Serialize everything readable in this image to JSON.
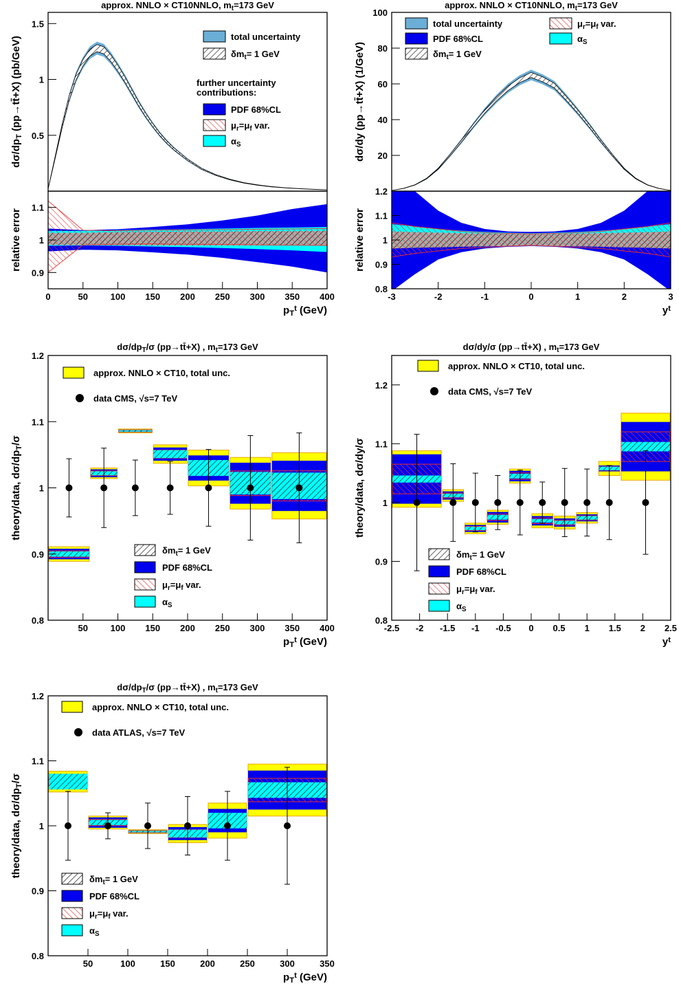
{
  "chart_data": [
    {
      "id": "ptMain",
      "type": "area",
      "title": "approx. NNLO × CT10NNLO, m_t=173 GeV",
      "xlabel": "",
      "ylabel": "dσ/dp_T (pp→tt̄+X) (pb/GeV)",
      "xlim": [
        0,
        400
      ],
      "ylim": [
        0,
        1.6
      ],
      "yticks": [
        0.5,
        1,
        1.5
      ],
      "x": [
        0,
        10,
        20,
        30,
        40,
        50,
        60,
        70,
        80,
        90,
        100,
        110,
        120,
        130,
        140,
        150,
        160,
        170,
        180,
        190,
        200,
        220,
        240,
        260,
        280,
        300,
        320,
        340,
        360,
        380,
        400
      ],
      "values": [
        0.02,
        0.3,
        0.58,
        0.83,
        1.02,
        1.15,
        1.24,
        1.28,
        1.26,
        1.19,
        1.1,
        1.0,
        0.89,
        0.78,
        0.68,
        0.59,
        0.51,
        0.44,
        0.38,
        0.33,
        0.28,
        0.2,
        0.145,
        0.105,
        0.075,
        0.055,
        0.04,
        0.03,
        0.022,
        0.016,
        0.012
      ],
      "bands": [
        {
          "name": "total uncertainty",
          "rel_lo": 0.955,
          "rel_hi": 1.045,
          "color": "#6baed6"
        },
        {
          "name": "δm_t= 1 GeV",
          "rel_lo": 0.975,
          "rel_hi": 1.025,
          "color": "#9a9a9a"
        }
      ],
      "legend": {
        "items": [
          "total uncertainty",
          "δm_t= 1 GeV"
        ],
        "header_1": "further uncertainty",
        "header_2": "contributions:",
        "extra": [
          "PDF 68%CL",
          "μ_r=μ_f var.",
          "α_S"
        ]
      }
    },
    {
      "id": "ptRel",
      "type": "area",
      "xlabel": "p_T^t (GeV)",
      "ylabel": "relative error",
      "xlim": [
        0,
        400
      ],
      "ylim": [
        0.85,
        1.15
      ],
      "xticks": [
        0,
        50,
        100,
        150,
        200,
        250,
        300,
        350,
        400
      ],
      "yticks": [
        0.9,
        1,
        1.1
      ],
      "x": [
        0,
        50,
        100,
        150,
        200,
        250,
        300,
        350,
        400
      ],
      "pdf_lo": [
        0.965,
        0.97,
        0.968,
        0.962,
        0.955,
        0.945,
        0.932,
        0.918,
        0.9
      ],
      "pdf_hi": [
        1.035,
        1.03,
        1.033,
        1.04,
        1.048,
        1.06,
        1.075,
        1.095,
        1.11
      ],
      "alphas_lo": [
        0.982,
        0.983,
        0.982,
        0.98,
        0.978,
        0.975,
        0.972,
        0.968,
        0.963
      ],
      "alphas_hi": [
        1.028,
        1.028,
        1.03,
        1.032,
        1.033,
        1.035,
        1.037,
        1.038,
        1.04
      ],
      "mass_lo": [
        0.985,
        0.984,
        0.984,
        0.983,
        0.983,
        0.983,
        0.983,
        0.983,
        0.984
      ],
      "mass_hi": [
        1.022,
        1.022,
        1.024,
        1.025,
        1.026,
        1.026,
        1.027,
        1.027,
        1.028
      ],
      "scale_lo": [
        0.9,
        0.985,
        0.987,
        0.988,
        0.987,
        0.986,
        0.985,
        0.984,
        0.983
      ],
      "scale_hi": [
        1.12,
        1.03,
        1.028,
        1.03,
        1.031,
        1.032,
        1.033,
        1.034,
        1.035
      ]
    },
    {
      "id": "yMain",
      "type": "area",
      "title": "approx. NNLO × CT10NNLO, m_t=173 GeV",
      "xlabel": "",
      "ylabel": "dσ/dy (pp→tt̄+X) (1/GeV)",
      "xlim": [
        -3,
        3
      ],
      "ylim": [
        0,
        100
      ],
      "yticks": [
        20,
        40,
        60,
        80,
        100
      ],
      "x": [
        -3,
        -2.75,
        -2.5,
        -2.25,
        -2,
        -1.75,
        -1.5,
        -1.25,
        -1,
        -0.75,
        -0.5,
        -0.25,
        0,
        0.25,
        0.5,
        0.75,
        1,
        1.25,
        1.5,
        1.75,
        2,
        2.25,
        2.5,
        2.75,
        3
      ],
      "values": [
        0.4,
        1.5,
        3.5,
        7,
        12.5,
        20,
        28,
        36.5,
        44.5,
        51.5,
        57.5,
        62,
        65,
        62.5,
        59,
        52,
        44.5,
        36.5,
        28,
        20,
        12.5,
        7,
        3.5,
        1.5,
        0.4
      ],
      "bands": [
        {
          "name": "total uncertainty",
          "rel_lo": 0.955,
          "rel_hi": 1.045,
          "color": "#6baed6"
        },
        {
          "name": "δm_t= 1 GeV",
          "rel_lo": 0.978,
          "rel_hi": 1.022,
          "color": "#9a9a9a"
        }
      ],
      "legend": {
        "items": [
          "total uncertainty",
          "PDF 68%CL",
          "δm_t= 1 GeV",
          "μ_r=μ_f var.",
          "α_S"
        ]
      }
    },
    {
      "id": "yRel",
      "type": "area",
      "xlabel": "y^t",
      "ylabel": "relative error",
      "xlim": [
        -3,
        3
      ],
      "ylim": [
        0.8,
        1.2
      ],
      "xticks": [
        -3,
        -2,
        -1,
        0,
        1,
        2,
        3
      ],
      "yticks": [
        0.8,
        0.9,
        1,
        1.1,
        1.2
      ],
      "x": [
        -3,
        -2.5,
        -2,
        -1.5,
        -1,
        -0.5,
        0,
        0.5,
        1,
        1.5,
        2,
        2.5,
        3
      ],
      "pdf_lo": [
        0.79,
        0.86,
        0.92,
        0.95,
        0.965,
        0.972,
        0.975,
        0.972,
        0.965,
        0.95,
        0.92,
        0.86,
        0.79
      ],
      "pdf_hi": [
        1.21,
        1.2,
        1.12,
        1.07,
        1.045,
        1.035,
        1.033,
        1.035,
        1.045,
        1.07,
        1.12,
        1.2,
        1.21
      ],
      "alphas_lo": [
        0.98,
        0.98,
        0.98,
        0.98,
        0.98,
        0.98,
        0.98,
        0.98,
        0.98,
        0.98,
        0.98,
        0.98,
        0.98
      ],
      "alphas_hi": [
        1.065,
        1.055,
        1.045,
        1.038,
        1.033,
        1.03,
        1.028,
        1.03,
        1.033,
        1.038,
        1.045,
        1.055,
        1.065
      ],
      "mass_lo": [
        0.965,
        0.968,
        0.97,
        0.972,
        0.974,
        0.975,
        0.976,
        0.975,
        0.974,
        0.972,
        0.97,
        0.968,
        0.965
      ],
      "mass_hi": [
        1.035,
        1.032,
        1.03,
        1.028,
        1.026,
        1.025,
        1.024,
        1.025,
        1.026,
        1.028,
        1.03,
        1.032,
        1.035
      ],
      "scale_lo": [
        0.93,
        0.945,
        0.955,
        0.965,
        0.97,
        0.975,
        0.978,
        0.975,
        0.97,
        0.965,
        0.955,
        0.945,
        0.93
      ],
      "scale_hi": [
        1.07,
        1.055,
        1.045,
        1.035,
        1.03,
        1.027,
        1.025,
        1.027,
        1.03,
        1.035,
        1.045,
        1.055,
        1.07
      ]
    },
    {
      "id": "cmsPt",
      "type": "bar",
      "title": "dσ/dp_T/σ (pp→tt̄+X) , m_t=173 GeV",
      "xlabel": "p_T^t (GeV)",
      "ylabel": "theory/data, dσ/dp_T/σ",
      "xlim": [
        0,
        400
      ],
      "ylim": [
        0.8,
        1.2
      ],
      "xticks": [
        50,
        100,
        150,
        200,
        250,
        300,
        350,
        400
      ],
      "yticks": [
        0.8,
        0.9,
        1,
        1.1,
        1.2
      ],
      "bins": [
        {
          "lo": 0,
          "hi": 60,
          "c": 0.9,
          "tot": 0.011,
          "pdf": 0.008,
          "dm": 0.004
        },
        {
          "lo": 60,
          "hi": 100,
          "c": 1.022,
          "tot": 0.008,
          "pdf": 0.006,
          "dm": 0.003
        },
        {
          "lo": 100,
          "hi": 150,
          "c": 1.086,
          "tot": 0.003,
          "pdf": 0.002,
          "dm": 0.001
        },
        {
          "lo": 150,
          "hi": 200,
          "c": 1.051,
          "tot": 0.014,
          "pdf": 0.01,
          "dm": 0.006
        },
        {
          "lo": 200,
          "hi": 260,
          "c": 1.03,
          "tot": 0.027,
          "pdf": 0.019,
          "dm": 0.012
        },
        {
          "lo": 260,
          "hi": 320,
          "c": 1.007,
          "tot": 0.039,
          "pdf": 0.031,
          "dm": 0.017
        },
        {
          "lo": 320,
          "hi": 400,
          "c": 1.003,
          "tot": 0.05,
          "pdf": 0.038,
          "dm": 0.02
        }
      ],
      "data_x": [
        30,
        80,
        125,
        175,
        230,
        290,
        360
      ],
      "data_y": [
        1,
        1,
        1,
        1,
        1,
        1,
        1
      ],
      "data_err": [
        0.044,
        0.06,
        0.042,
        0.04,
        0.058,
        0.079,
        0.083
      ],
      "legend": {
        "top": [
          "approx. NNLO × CT10, total unc.",
          "data CMS, √s=7 TeV"
        ],
        "bottom": [
          "δm_t= 1 GeV",
          "PDF 68%CL",
          "μ_r=μ_f var.",
          "α_S"
        ]
      }
    },
    {
      "id": "cmsY",
      "type": "bar",
      "title": "dσ/dy/σ (pp→tt̄+X) , m_t=173 GeV",
      "xlabel": "y^t",
      "ylabel": "theory/data, dσ/dy/σ",
      "xlim": [
        -2.5,
        2.5
      ],
      "ylim": [
        0.8,
        1.25
      ],
      "xticks": [
        -2.5,
        -2,
        -1.5,
        -1,
        -0.5,
        0,
        0.5,
        1,
        1.5,
        2,
        2.5
      ],
      "yticks": [
        0.8,
        0.9,
        1,
        1.1,
        1.2
      ],
      "bins": [
        {
          "lo": -2.5,
          "hi": -1.6,
          "c": 1.04,
          "tot": 0.048,
          "pdf": 0.042,
          "dm": 0.006
        },
        {
          "lo": -1.6,
          "hi": -1.2,
          "c": 1.012,
          "tot": 0.01,
          "pdf": 0.007,
          "dm": 0.003
        },
        {
          "lo": -1.2,
          "hi": -0.8,
          "c": 0.956,
          "tot": 0.009,
          "pdf": 0.006,
          "dm": 0.003
        },
        {
          "lo": -0.8,
          "hi": -0.4,
          "c": 0.975,
          "tot": 0.012,
          "pdf": 0.009,
          "dm": 0.004
        },
        {
          "lo": -0.4,
          "hi": 0,
          "c": 1.045,
          "tot": 0.012,
          "pdf": 0.009,
          "dm": 0.004
        },
        {
          "lo": 0,
          "hi": 0.4,
          "c": 0.969,
          "tot": 0.012,
          "pdf": 0.008,
          "dm": 0.003
        },
        {
          "lo": 0.4,
          "hi": 0.8,
          "c": 0.966,
          "tot": 0.011,
          "pdf": 0.007,
          "dm": 0.003
        },
        {
          "lo": 0.8,
          "hi": 1.2,
          "c": 0.974,
          "tot": 0.009,
          "pdf": 0.006,
          "dm": 0.003
        },
        {
          "lo": 1.2,
          "hi": 1.6,
          "c": 1.058,
          "tot": 0.012,
          "pdf": 0.005,
          "dm": 0.003
        },
        {
          "lo": 1.6,
          "hi": 2.5,
          "c": 1.095,
          "tot": 0.057,
          "pdf": 0.042,
          "dm": 0.008
        }
      ],
      "data_x": [
        -2.05,
        -1.4,
        -1,
        -0.6,
        -0.2,
        0.2,
        0.6,
        1,
        1.4,
        2.05
      ],
      "data_y": [
        1,
        1,
        1,
        1,
        1,
        1,
        1,
        1,
        1,
        1
      ],
      "data_err": [
        0.116,
        0.066,
        0.05,
        0.046,
        0.055,
        0.035,
        0.058,
        0.057,
        0.063,
        0.088
      ],
      "legend": {
        "top": [
          "approx. NNLO × CT10, total unc.",
          "data CMS, √s=7 TeV"
        ],
        "bottom": [
          "δm_t= 1 GeV",
          "PDF 68%CL",
          "μ_r=μ_f var.",
          "α_S"
        ]
      }
    },
    {
      "id": "atlasPt",
      "type": "bar",
      "title": "dσ/dp_T/σ (pp→tt̄+X) , m_t=173 GeV",
      "xlabel": "p_T^t (GeV)",
      "ylabel": "theory/data, dσ/dp_T/σ",
      "xlim": [
        0,
        350
      ],
      "ylim": [
        0.8,
        1.2
      ],
      "xticks": [
        50,
        100,
        150,
        200,
        250,
        300,
        350
      ],
      "yticks": [
        0.8,
        0.9,
        1,
        1.1,
        1.2
      ],
      "bins": [
        {
          "lo": 0,
          "hi": 50,
          "c": 1.068,
          "tot": 0.016,
          "pdf": 0.012,
          "dm": 0.012
        },
        {
          "lo": 50,
          "hi": 100,
          "c": 1.005,
          "tot": 0.01,
          "pdf": 0.008,
          "dm": 0.004
        },
        {
          "lo": 100,
          "hi": 150,
          "c": 0.991,
          "tot": 0.003,
          "pdf": 0.002,
          "dm": 0.001
        },
        {
          "lo": 150,
          "hi": 200,
          "c": 0.988,
          "tot": 0.014,
          "pdf": 0.01,
          "dm": 0.006
        },
        {
          "lo": 200,
          "hi": 250,
          "c": 1.008,
          "tot": 0.027,
          "pdf": 0.018,
          "dm": 0.012
        },
        {
          "lo": 250,
          "hi": 350,
          "c": 1.055,
          "tot": 0.04,
          "pdf": 0.03,
          "dm": 0.012
        }
      ],
      "data_x": [
        25,
        75,
        125,
        175,
        225,
        300
      ],
      "data_y": [
        1,
        1,
        1,
        1,
        1,
        1
      ],
      "data_err": [
        0.053,
        0.02,
        0.035,
        0.045,
        0.053,
        0.09
      ],
      "legend": {
        "top": [
          "approx. NNLO × CT10, total unc.",
          "data ATLAS, √s=7 TeV"
        ],
        "bottom": [
          "δm_t= 1 GeV",
          "PDF 68%CL",
          "μ_r=μ_f var.",
          "α_S"
        ]
      }
    }
  ],
  "colors": {
    "total": "#6baed6",
    "pdf": "#0000ee",
    "alphas": "#00ffff",
    "scale": "#e83030",
    "mass": "#000000",
    "yellow": "#ffff00",
    "yellow_edge": "#e8a800"
  }
}
